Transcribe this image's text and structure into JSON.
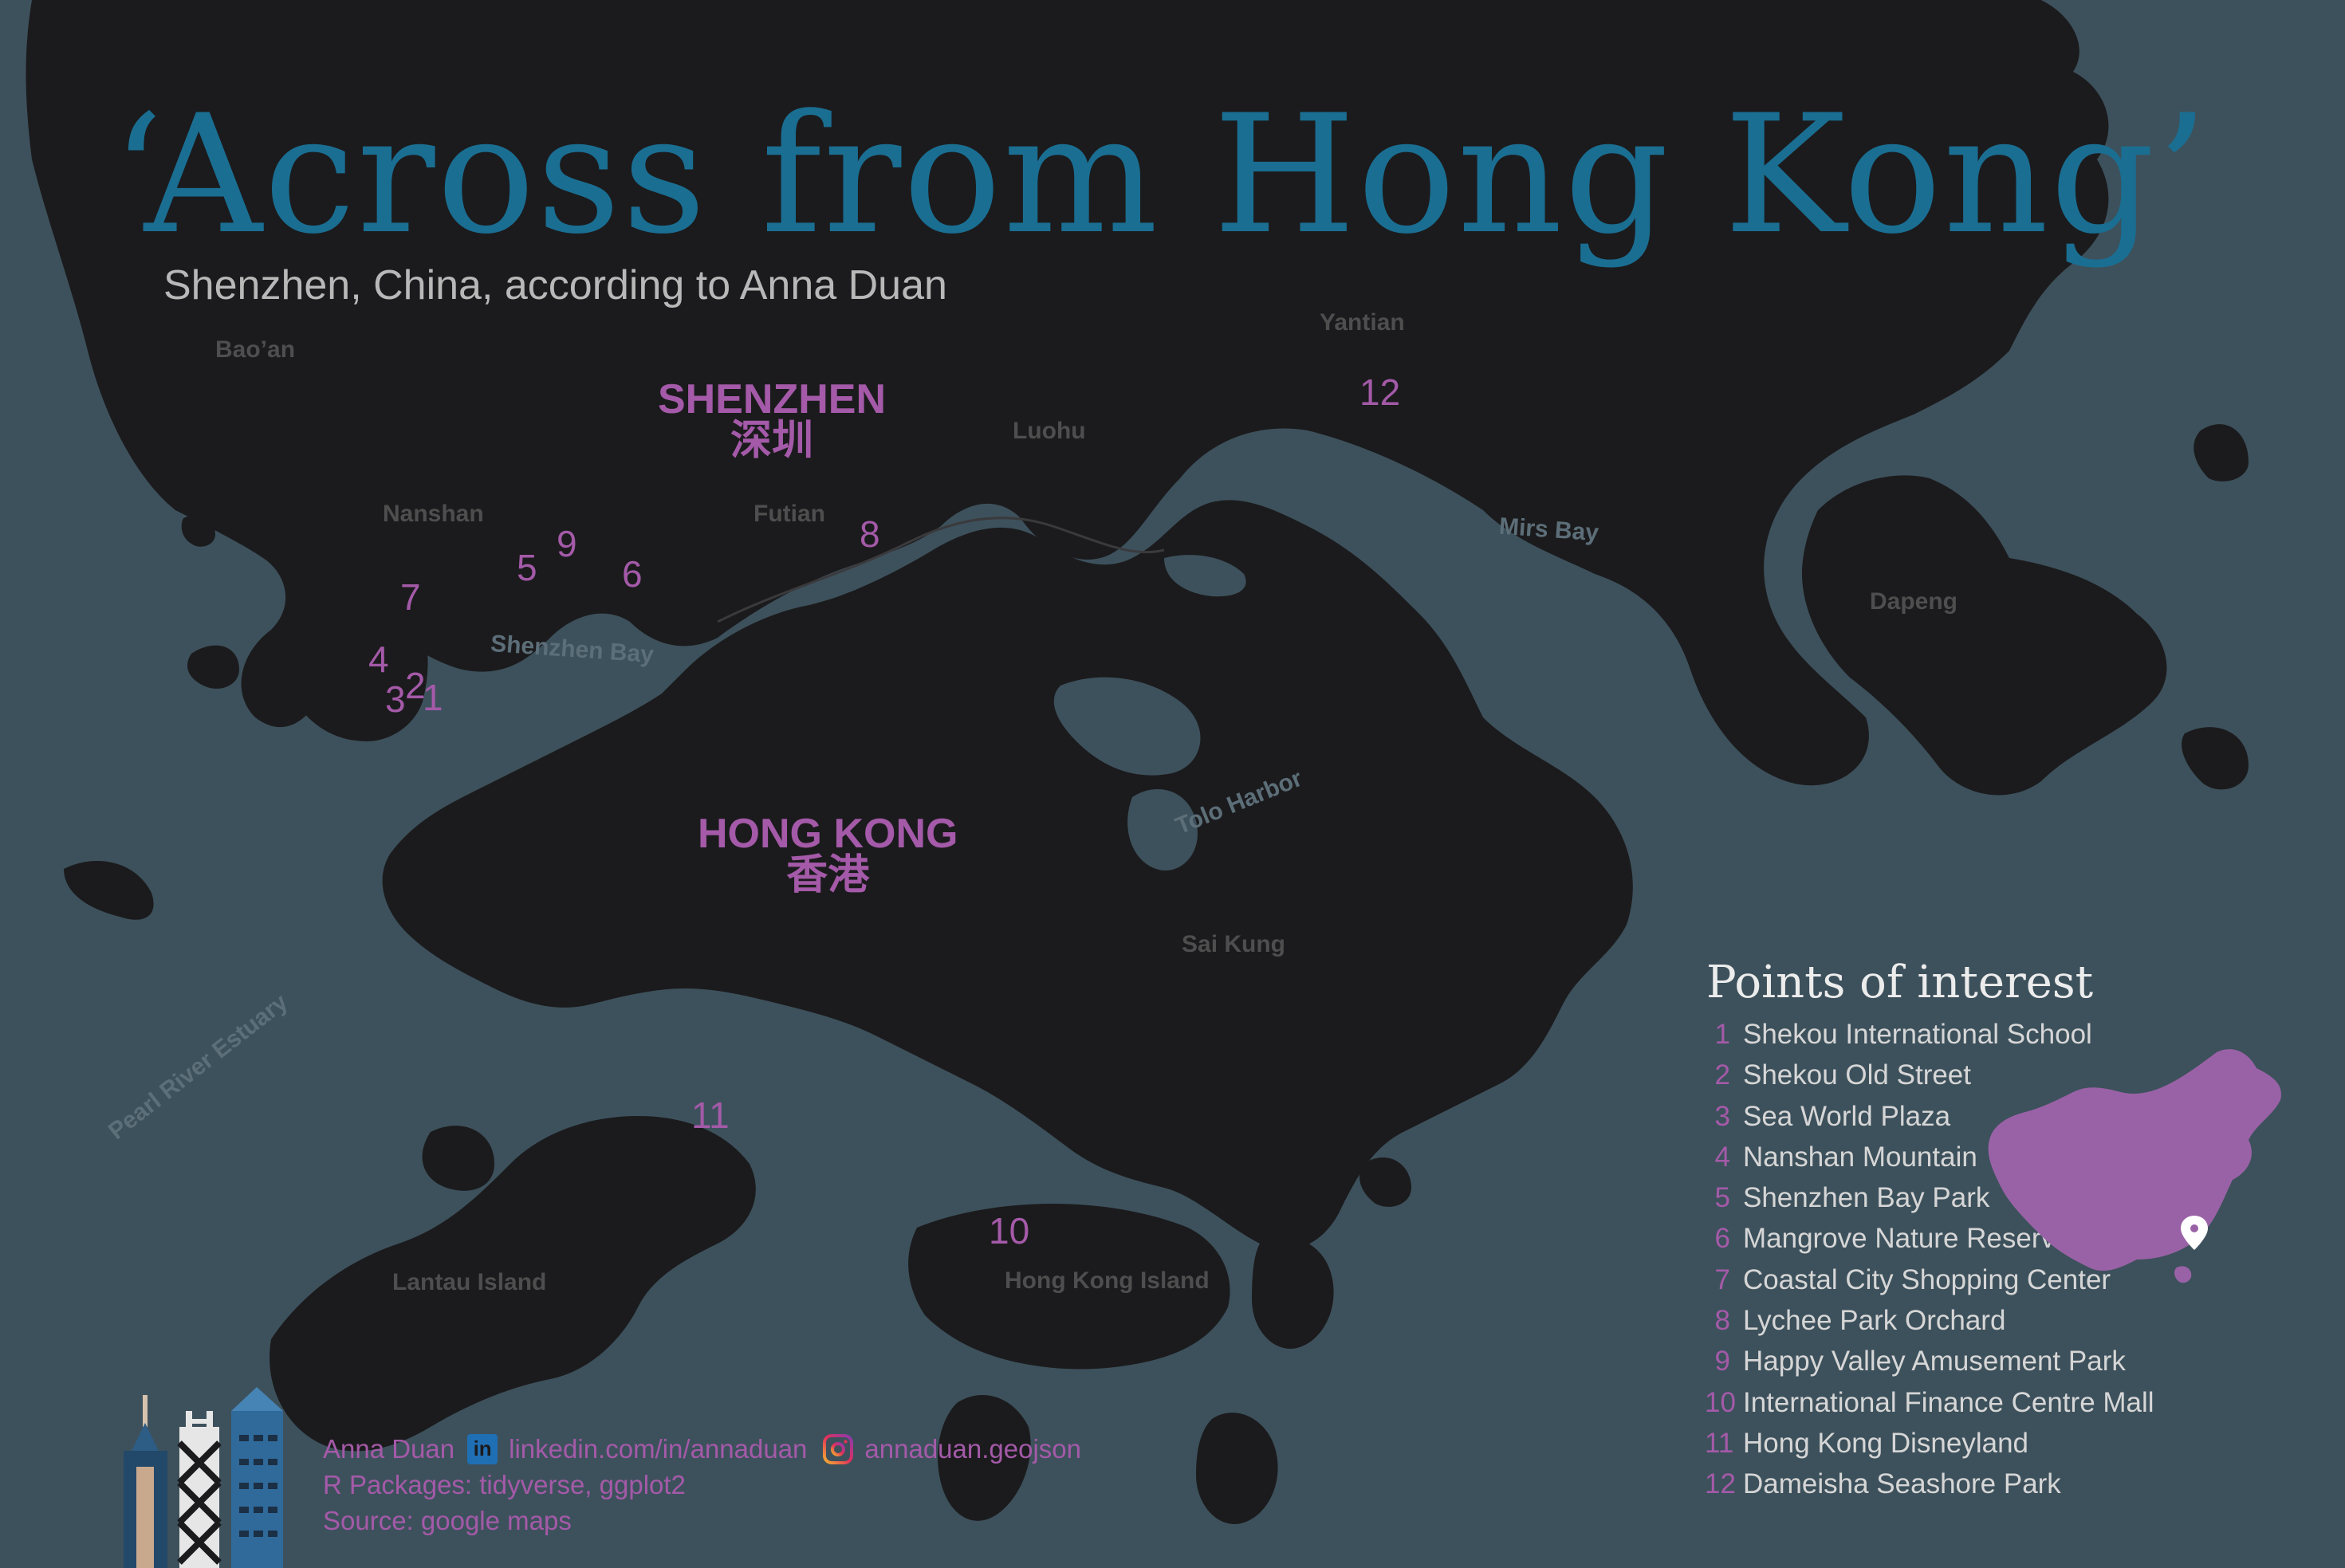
{
  "title": "‘Across from Hong Kong’",
  "subtitle": "Shenzhen, China, according to Anna Duan",
  "colors": {
    "water": "#3d515c",
    "land": "#1b1b1d",
    "accent_purple": "#a45aa8",
    "title_blue": "#1a6e92"
  },
  "districts": [
    "Bao’an",
    "Nanshan",
    "Futian",
    "Luohu",
    "Yantian",
    "Dapeng",
    "Sai Kung",
    "Lantau Island",
    "Hong Kong Island"
  ],
  "water_bodies": [
    "Shenzhen Bay",
    "Tolo Harbor",
    "Mirs Bay",
    "Pearl River Estuary"
  ],
  "cities": [
    {
      "name": "SHENZHEN",
      "name_zh": "深圳"
    },
    {
      "name": "HONG KONG",
      "name_zh": "香港"
    }
  ],
  "poi_markers": [
    "1",
    "2",
    "3",
    "4",
    "5",
    "6",
    "7",
    "8",
    "9",
    "10",
    "11",
    "12"
  ],
  "legend": {
    "title": "Points of interest",
    "items": [
      {
        "num": "1",
        "label": "Shekou International School"
      },
      {
        "num": "2",
        "label": "Shekou Old Street"
      },
      {
        "num": "3",
        "label": "Sea World Plaza"
      },
      {
        "num": "4",
        "label": "Nanshan Mountain"
      },
      {
        "num": "5",
        "label": "Shenzhen Bay Park"
      },
      {
        "num": "6",
        "label": "Mangrove Nature Reserve"
      },
      {
        "num": "7",
        "label": "Coastal City Shopping Center"
      },
      {
        "num": "8",
        "label": "Lychee Park Orchard"
      },
      {
        "num": "9",
        "label": "Happy Valley Amusement Park"
      },
      {
        "num": "10",
        "label": "International Finance Centre Mall"
      },
      {
        "num": "11",
        "label": "Hong Kong Disneyland"
      },
      {
        "num": "12",
        "label": "Dameisha Seashore Park"
      }
    ]
  },
  "credits": {
    "author": "Anna Duan",
    "linkedin": "linkedin.com/in/annaduan",
    "linkedin_icon": "linkedin-icon",
    "instagram": "annaduan.geojson",
    "instagram_icon": "instagram-icon",
    "packages": "R Packages: tidyverse, ggplot2",
    "source": "Source: google maps"
  }
}
